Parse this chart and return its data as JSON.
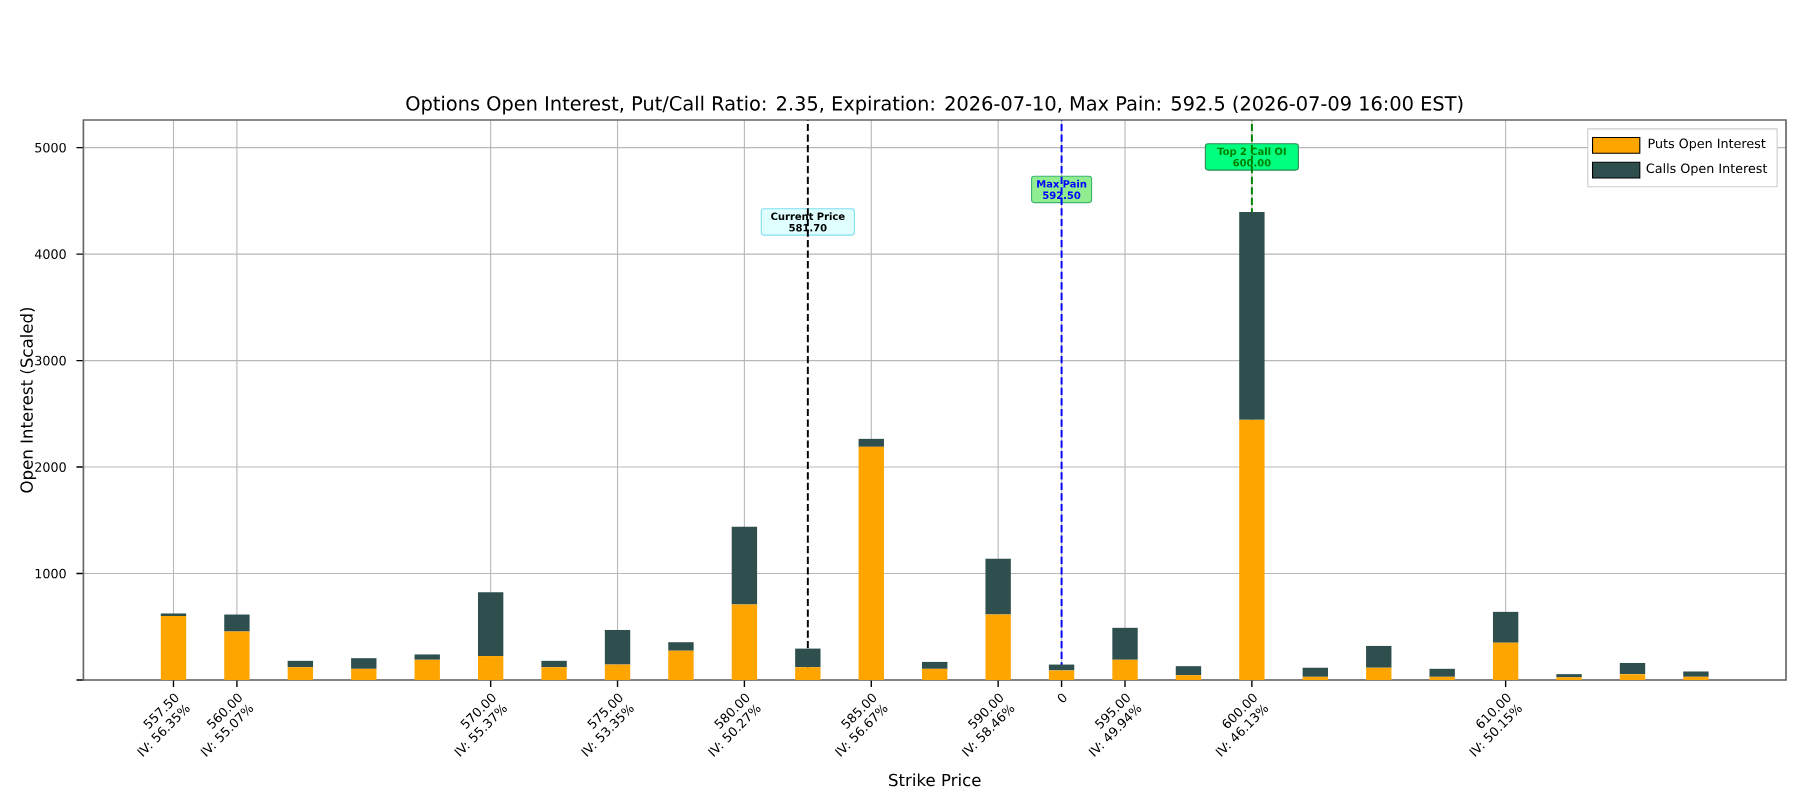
{
  "chart_data": {
    "type": "bar",
    "stacked": true,
    "title": "Options Open Interest, Put/Call Ratio: 2.35, Expiration: 2026-07-10, Max Pain: 592.5 (2026-07-09 16:00 EST)",
    "xlabel": "Strike Price",
    "ylabel": "Open Interest (Scaled)",
    "categories": [
      "557.50\nIV: 56.35%",
      "560.00\nIV: 55.07%",
      null,
      null,
      null,
      "570.00\nIV: 55.37%",
      null,
      "575.00\nIV: 53.35%",
      null,
      "580.00\nIV: 50.27%",
      null,
      "585.00\nIV: 56.67%",
      null,
      "590.00\nIV: 58.46%",
      "0",
      "595.00\nIV: 49.94%",
      null,
      "600.00\nIV: 46.13%",
      null,
      null,
      null,
      "610.00\nIV: 50.15%",
      null,
      null,
      null
    ],
    "series": [
      {
        "name": "Puts Open Interest",
        "color": "#ffa500",
        "values": [
          600,
          455,
          120,
          105,
          190,
          225,
          120,
          145,
          275,
          710,
          120,
          2190,
          105,
          615,
          90,
          190,
          45,
          2445,
          30,
          115,
          30,
          350,
          25,
          55,
          30
        ]
      },
      {
        "name": "Calls Open Interest",
        "color": "#2f4f4f",
        "values": [
          25,
          160,
          60,
          100,
          50,
          600,
          60,
          325,
          80,
          730,
          175,
          75,
          65,
          525,
          55,
          300,
          85,
          1950,
          85,
          205,
          75,
          290,
          30,
          105,
          50
        ]
      }
    ],
    "ylim": [
      0,
      5260
    ],
    "yticks": [
      {
        "value": 0,
        "label": null
      },
      1000,
      2000,
      3000,
      4000,
      5000
    ],
    "ref_lines": [
      {
        "axis": "x",
        "value": "0",
        "label": "Max Pain\n592.50",
        "color": "#0000ff",
        "line_style": "dashed"
      },
      {
        "axis": "x",
        "value": "600.00\nIV: 46.13%",
        "label": "Top 2 Call OI\n600.00",
        "color": "#008000",
        "line_style": "dashed"
      }
    ],
    "annotations": [
      "Current Price\n581.70"
    ],
    "grid": true,
    "legend": "top right"
  }
}
